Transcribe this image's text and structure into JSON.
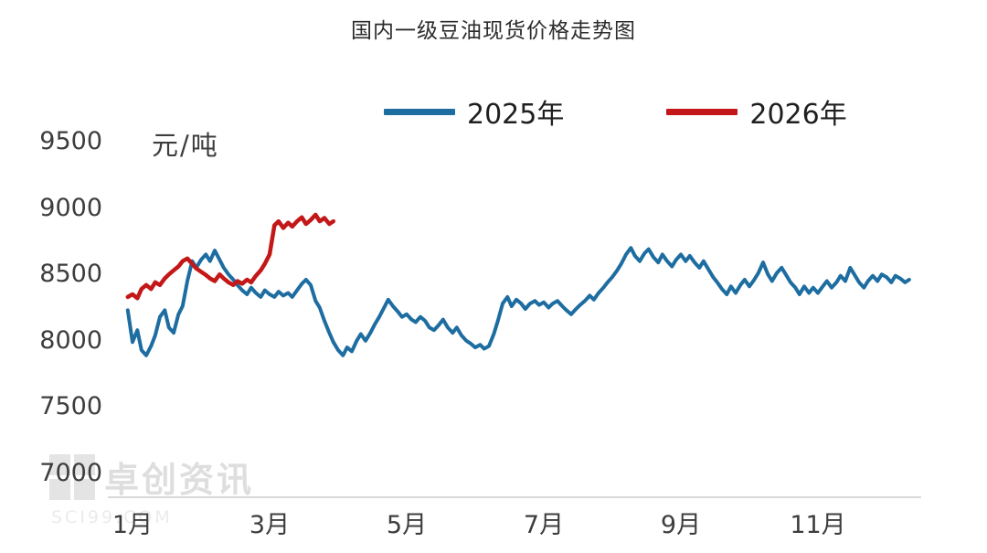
{
  "page": {
    "background": "#ffffff"
  },
  "watermark": {
    "text": "卓创资讯",
    "subtext": "SCI99.COM"
  },
  "chart_data": {
    "type": "line",
    "title": "国内一级豆油现货价格走势图",
    "unit_label": "元/吨",
    "legend_position": "top-center",
    "grid": false,
    "axis_color": "#d9d9d9",
    "x_axis": {
      "tick_labels": [
        "1月",
        "3月",
        "5月",
        "7月",
        "9月",
        "11月"
      ],
      "tick_positions_months": [
        0,
        2,
        4,
        6,
        8,
        10
      ],
      "range_months": [
        -0.2,
        11.6
      ]
    },
    "y_axis": {
      "tick_labels": [
        9500,
        9000,
        8500,
        8000,
        7500,
        7000
      ],
      "range": [
        7000,
        9500
      ],
      "unit": "元/吨"
    },
    "series": [
      {
        "name": "2025年",
        "color": "#1d6da1",
        "points": [
          [
            -0.07,
            8230
          ],
          [
            0,
            7990
          ],
          [
            0.07,
            8080
          ],
          [
            0.13,
            7930
          ],
          [
            0.2,
            7890
          ],
          [
            0.27,
            7960
          ],
          [
            0.33,
            8040
          ],
          [
            0.4,
            8180
          ],
          [
            0.47,
            8230
          ],
          [
            0.53,
            8100
          ],
          [
            0.6,
            8060
          ],
          [
            0.67,
            8200
          ],
          [
            0.73,
            8260
          ],
          [
            0.8,
            8450
          ],
          [
            0.87,
            8600
          ],
          [
            0.93,
            8550
          ],
          [
            1,
            8610
          ],
          [
            1.07,
            8650
          ],
          [
            1.13,
            8600
          ],
          [
            1.2,
            8680
          ],
          [
            1.27,
            8610
          ],
          [
            1.33,
            8550
          ],
          [
            1.4,
            8500
          ],
          [
            1.47,
            8460
          ],
          [
            1.53,
            8420
          ],
          [
            1.6,
            8380
          ],
          [
            1.67,
            8350
          ],
          [
            1.73,
            8400
          ],
          [
            1.8,
            8360
          ],
          [
            1.87,
            8330
          ],
          [
            1.93,
            8380
          ],
          [
            2,
            8350
          ],
          [
            2.07,
            8330
          ],
          [
            2.13,
            8370
          ],
          [
            2.2,
            8340
          ],
          [
            2.27,
            8360
          ],
          [
            2.33,
            8330
          ],
          [
            2.4,
            8380
          ],
          [
            2.47,
            8430
          ],
          [
            2.53,
            8460
          ],
          [
            2.6,
            8420
          ],
          [
            2.67,
            8300
          ],
          [
            2.73,
            8250
          ],
          [
            2.8,
            8150
          ],
          [
            2.87,
            8060
          ],
          [
            2.93,
            7990
          ],
          [
            3,
            7930
          ],
          [
            3.07,
            7890
          ],
          [
            3.13,
            7950
          ],
          [
            3.2,
            7920
          ],
          [
            3.27,
            8000
          ],
          [
            3.33,
            8050
          ],
          [
            3.4,
            8000
          ],
          [
            3.47,
            8060
          ],
          [
            3.53,
            8120
          ],
          [
            3.6,
            8180
          ],
          [
            3.67,
            8250
          ],
          [
            3.73,
            8310
          ],
          [
            3.8,
            8260
          ],
          [
            3.87,
            8220
          ],
          [
            3.93,
            8180
          ],
          [
            4,
            8200
          ],
          [
            4.07,
            8160
          ],
          [
            4.13,
            8140
          ],
          [
            4.2,
            8180
          ],
          [
            4.27,
            8150
          ],
          [
            4.33,
            8100
          ],
          [
            4.4,
            8080
          ],
          [
            4.47,
            8120
          ],
          [
            4.53,
            8160
          ],
          [
            4.6,
            8100
          ],
          [
            4.67,
            8060
          ],
          [
            4.73,
            8100
          ],
          [
            4.8,
            8040
          ],
          [
            4.87,
            8000
          ],
          [
            4.93,
            7980
          ],
          [
            5,
            7950
          ],
          [
            5.07,
            7970
          ],
          [
            5.13,
            7940
          ],
          [
            5.2,
            7960
          ],
          [
            5.27,
            8050
          ],
          [
            5.33,
            8150
          ],
          [
            5.4,
            8280
          ],
          [
            5.47,
            8330
          ],
          [
            5.53,
            8260
          ],
          [
            5.6,
            8310
          ],
          [
            5.67,
            8280
          ],
          [
            5.73,
            8240
          ],
          [
            5.8,
            8280
          ],
          [
            5.87,
            8300
          ],
          [
            5.93,
            8270
          ],
          [
            6,
            8290
          ],
          [
            6.07,
            8250
          ],
          [
            6.13,
            8280
          ],
          [
            6.2,
            8300
          ],
          [
            6.27,
            8260
          ],
          [
            6.33,
            8230
          ],
          [
            6.4,
            8200
          ],
          [
            6.47,
            8240
          ],
          [
            6.53,
            8270
          ],
          [
            6.6,
            8300
          ],
          [
            6.67,
            8340
          ],
          [
            6.73,
            8310
          ],
          [
            6.8,
            8360
          ],
          [
            6.87,
            8400
          ],
          [
            6.93,
            8440
          ],
          [
            7,
            8480
          ],
          [
            7.07,
            8530
          ],
          [
            7.13,
            8580
          ],
          [
            7.2,
            8650
          ],
          [
            7.27,
            8700
          ],
          [
            7.33,
            8640
          ],
          [
            7.4,
            8600
          ],
          [
            7.47,
            8660
          ],
          [
            7.53,
            8690
          ],
          [
            7.6,
            8630
          ],
          [
            7.67,
            8590
          ],
          [
            7.73,
            8650
          ],
          [
            7.8,
            8600
          ],
          [
            7.87,
            8560
          ],
          [
            7.93,
            8610
          ],
          [
            8,
            8650
          ],
          [
            8.07,
            8600
          ],
          [
            8.13,
            8640
          ],
          [
            8.2,
            8590
          ],
          [
            8.27,
            8550
          ],
          [
            8.33,
            8600
          ],
          [
            8.4,
            8540
          ],
          [
            8.47,
            8480
          ],
          [
            8.53,
            8440
          ],
          [
            8.6,
            8390
          ],
          [
            8.67,
            8350
          ],
          [
            8.73,
            8410
          ],
          [
            8.8,
            8360
          ],
          [
            8.87,
            8420
          ],
          [
            8.93,
            8460
          ],
          [
            9,
            8410
          ],
          [
            9.07,
            8460
          ],
          [
            9.13,
            8510
          ],
          [
            9.2,
            8590
          ],
          [
            9.27,
            8500
          ],
          [
            9.33,
            8450
          ],
          [
            9.4,
            8510
          ],
          [
            9.47,
            8550
          ],
          [
            9.53,
            8500
          ],
          [
            9.6,
            8440
          ],
          [
            9.67,
            8400
          ],
          [
            9.73,
            8350
          ],
          [
            9.8,
            8410
          ],
          [
            9.87,
            8360
          ],
          [
            9.93,
            8400
          ],
          [
            10,
            8360
          ],
          [
            10.07,
            8410
          ],
          [
            10.13,
            8450
          ],
          [
            10.2,
            8400
          ],
          [
            10.27,
            8440
          ],
          [
            10.33,
            8490
          ],
          [
            10.4,
            8450
          ],
          [
            10.47,
            8550
          ],
          [
            10.53,
            8500
          ],
          [
            10.6,
            8440
          ],
          [
            10.67,
            8400
          ],
          [
            10.73,
            8450
          ],
          [
            10.8,
            8490
          ],
          [
            10.87,
            8450
          ],
          [
            10.93,
            8500
          ],
          [
            11,
            8480
          ],
          [
            11.07,
            8440
          ],
          [
            11.13,
            8490
          ],
          [
            11.2,
            8470
          ],
          [
            11.27,
            8440
          ],
          [
            11.33,
            8460
          ]
        ]
      },
      {
        "name": "2026年",
        "color": "#c31718",
        "points": [
          [
            -0.07,
            8330
          ],
          [
            0,
            8350
          ],
          [
            0.07,
            8320
          ],
          [
            0.13,
            8390
          ],
          [
            0.2,
            8420
          ],
          [
            0.27,
            8390
          ],
          [
            0.33,
            8440
          ],
          [
            0.4,
            8420
          ],
          [
            0.47,
            8470
          ],
          [
            0.53,
            8500
          ],
          [
            0.6,
            8530
          ],
          [
            0.67,
            8560
          ],
          [
            0.73,
            8600
          ],
          [
            0.8,
            8620
          ],
          [
            0.87,
            8580
          ],
          [
            0.93,
            8545
          ],
          [
            1,
            8520
          ],
          [
            1.07,
            8495
          ],
          [
            1.13,
            8470
          ],
          [
            1.2,
            8450
          ],
          [
            1.27,
            8500
          ],
          [
            1.33,
            8470
          ],
          [
            1.4,
            8440
          ],
          [
            1.47,
            8420
          ],
          [
            1.53,
            8450
          ],
          [
            1.6,
            8430
          ],
          [
            1.67,
            8460
          ],
          [
            1.73,
            8440
          ],
          [
            1.8,
            8490
          ],
          [
            1.87,
            8530
          ],
          [
            1.93,
            8580
          ],
          [
            2,
            8650
          ],
          [
            2.07,
            8870
          ],
          [
            2.13,
            8900
          ],
          [
            2.2,
            8850
          ],
          [
            2.27,
            8890
          ],
          [
            2.33,
            8860
          ],
          [
            2.4,
            8900
          ],
          [
            2.47,
            8930
          ],
          [
            2.53,
            8880
          ],
          [
            2.6,
            8910
          ],
          [
            2.67,
            8950
          ],
          [
            2.73,
            8900
          ],
          [
            2.8,
            8925
          ],
          [
            2.87,
            8880
          ],
          [
            2.93,
            8900
          ]
        ]
      }
    ]
  }
}
